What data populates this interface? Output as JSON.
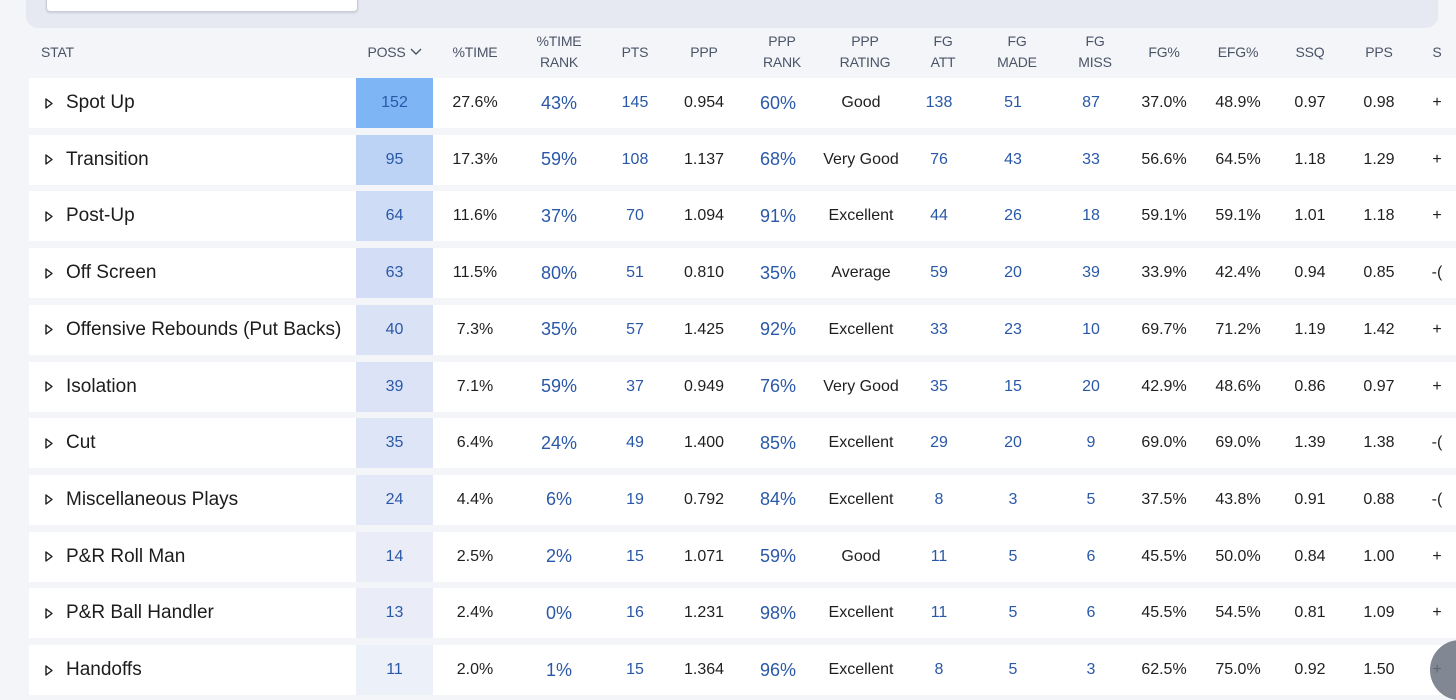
{
  "colors": {
    "page_bg": "#f4f5f8",
    "row_bg": "#ffffff",
    "link_blue": "#2a58a8",
    "header_text": "#4a5468",
    "poss_highlight_scale": [
      "#7eb6f5",
      "#bcd3f6",
      "#cfdcf6",
      "#d3ddf6",
      "#dae2f6",
      "#dce3f6",
      "#dee5f6",
      "#e4e9f7",
      "#eaedf8",
      "#eaedf8",
      "#ecf0f8"
    ]
  },
  "header": {
    "stat": "STAT",
    "poss": "POSS",
    "pct_time": "%TIME",
    "pct_time_rank_1": "%TIME",
    "pct_time_rank_2": "RANK",
    "pts": "PTS",
    "ppp": "PPP",
    "ppp_rank_1": "PPP",
    "ppp_rank_2": "RANK",
    "ppp_rating_1": "PPP",
    "ppp_rating_2": "RATING",
    "fg_att_1": "FG",
    "fg_att_2": "ATT",
    "fg_made_1": "FG",
    "fg_made_2": "MADE",
    "fg_miss_1": "FG",
    "fg_miss_2": "MISS",
    "fg_pct": "FG%",
    "efg_pct": "EFG%",
    "ssq": "SSQ",
    "pps": "PPS",
    "cut_off": "S",
    "sort_icon": "chevron-down-icon"
  },
  "rows": [
    {
      "name": "Spot Up",
      "poss": "152",
      "pct_time": "27.6%",
      "pct_time_rank": "43%",
      "pts": "145",
      "ppp": "0.954",
      "ppp_rank": "60%",
      "ppp_rating": "Good",
      "fg_att": "138",
      "fg_made": "51",
      "fg_miss": "87",
      "fg_pct": "37.0%",
      "efg_pct": "48.9%",
      "ssq": "0.97",
      "pps": "0.98",
      "extra": "+"
    },
    {
      "name": "Transition",
      "poss": "95",
      "pct_time": "17.3%",
      "pct_time_rank": "59%",
      "pts": "108",
      "ppp": "1.137",
      "ppp_rank": "68%",
      "ppp_rating": "Very Good",
      "fg_att": "76",
      "fg_made": "43",
      "fg_miss": "33",
      "fg_pct": "56.6%",
      "efg_pct": "64.5%",
      "ssq": "1.18",
      "pps": "1.29",
      "extra": "+"
    },
    {
      "name": "Post-Up",
      "poss": "64",
      "pct_time": "11.6%",
      "pct_time_rank": "37%",
      "pts": "70",
      "ppp": "1.094",
      "ppp_rank": "91%",
      "ppp_rating": "Excellent",
      "fg_att": "44",
      "fg_made": "26",
      "fg_miss": "18",
      "fg_pct": "59.1%",
      "efg_pct": "59.1%",
      "ssq": "1.01",
      "pps": "1.18",
      "extra": "+"
    },
    {
      "name": "Off Screen",
      "poss": "63",
      "pct_time": "11.5%",
      "pct_time_rank": "80%",
      "pts": "51",
      "ppp": "0.810",
      "ppp_rank": "35%",
      "ppp_rating": "Average",
      "fg_att": "59",
      "fg_made": "20",
      "fg_miss": "39",
      "fg_pct": "33.9%",
      "efg_pct": "42.4%",
      "ssq": "0.94",
      "pps": "0.85",
      "extra": "-("
    },
    {
      "name": "Offensive Rebounds (Put Backs)",
      "poss": "40",
      "pct_time": "7.3%",
      "pct_time_rank": "35%",
      "pts": "57",
      "ppp": "1.425",
      "ppp_rank": "92%",
      "ppp_rating": "Excellent",
      "fg_att": "33",
      "fg_made": "23",
      "fg_miss": "10",
      "fg_pct": "69.7%",
      "efg_pct": "71.2%",
      "ssq": "1.19",
      "pps": "1.42",
      "extra": "+"
    },
    {
      "name": "Isolation",
      "poss": "39",
      "pct_time": "7.1%",
      "pct_time_rank": "59%",
      "pts": "37",
      "ppp": "0.949",
      "ppp_rank": "76%",
      "ppp_rating": "Very Good",
      "fg_att": "35",
      "fg_made": "15",
      "fg_miss": "20",
      "fg_pct": "42.9%",
      "efg_pct": "48.6%",
      "ssq": "0.86",
      "pps": "0.97",
      "extra": "+"
    },
    {
      "name": "Cut",
      "poss": "35",
      "pct_time": "6.4%",
      "pct_time_rank": "24%",
      "pts": "49",
      "ppp": "1.400",
      "ppp_rank": "85%",
      "ppp_rating": "Excellent",
      "fg_att": "29",
      "fg_made": "20",
      "fg_miss": "9",
      "fg_pct": "69.0%",
      "efg_pct": "69.0%",
      "ssq": "1.39",
      "pps": "1.38",
      "extra": "-("
    },
    {
      "name": "Miscellaneous Plays",
      "poss": "24",
      "pct_time": "4.4%",
      "pct_time_rank": "6%",
      "pts": "19",
      "ppp": "0.792",
      "ppp_rank": "84%",
      "ppp_rating": "Excellent",
      "fg_att": "8",
      "fg_made": "3",
      "fg_miss": "5",
      "fg_pct": "37.5%",
      "efg_pct": "43.8%",
      "ssq": "0.91",
      "pps": "0.88",
      "extra": "-("
    },
    {
      "name": "P&R Roll Man",
      "poss": "14",
      "pct_time": "2.5%",
      "pct_time_rank": "2%",
      "pts": "15",
      "ppp": "1.071",
      "ppp_rank": "59%",
      "ppp_rating": "Good",
      "fg_att": "11",
      "fg_made": "5",
      "fg_miss": "6",
      "fg_pct": "45.5%",
      "efg_pct": "50.0%",
      "ssq": "0.84",
      "pps": "1.00",
      "extra": "+"
    },
    {
      "name": "P&R Ball Handler",
      "poss": "13",
      "pct_time": "2.4%",
      "pct_time_rank": "0%",
      "pts": "16",
      "ppp": "1.231",
      "ppp_rank": "98%",
      "ppp_rating": "Excellent",
      "fg_att": "11",
      "fg_made": "5",
      "fg_miss": "6",
      "fg_pct": "45.5%",
      "efg_pct": "54.5%",
      "ssq": "0.81",
      "pps": "1.09",
      "extra": "+"
    },
    {
      "name": "Handoffs",
      "poss": "11",
      "pct_time": "2.0%",
      "pct_time_rank": "1%",
      "pts": "15",
      "ppp": "1.364",
      "ppp_rank": "96%",
      "ppp_rating": "Excellent",
      "fg_att": "8",
      "fg_made": "5",
      "fg_miss": "3",
      "fg_pct": "62.5%",
      "efg_pct": "75.0%",
      "ssq": "0.92",
      "pps": "1.50",
      "extra": "+"
    }
  ]
}
